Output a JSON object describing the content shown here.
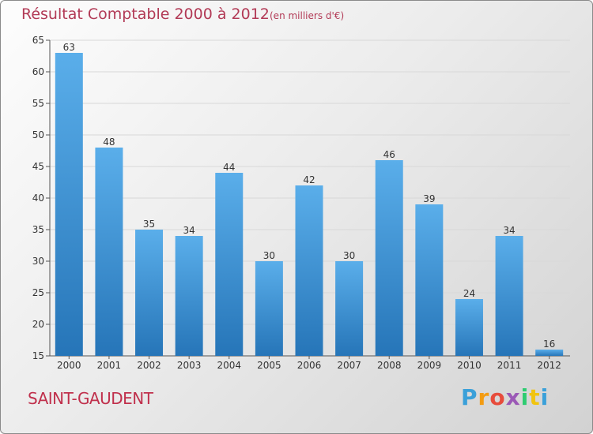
{
  "chart_data": {
    "type": "bar",
    "title": "Résultat Comptable 2000 à 2012",
    "subtitle": "(en milliers d'€)",
    "categories": [
      "2000",
      "2001",
      "2002",
      "2003",
      "2004",
      "2005",
      "2006",
      "2007",
      "2008",
      "2009",
      "2010",
      "2011",
      "2012"
    ],
    "values": [
      63,
      48,
      35,
      34,
      44,
      30,
      42,
      30,
      46,
      39,
      24,
      34,
      16
    ],
    "ylim": [
      15,
      65
    ],
    "yticks": [
      15,
      20,
      25,
      30,
      35,
      40,
      45,
      50,
      55,
      60,
      65
    ],
    "grid": true,
    "bar_color": "#3d8fd1"
  },
  "location": "SAINT-GAUDENT",
  "logo": {
    "text": "Proxiti",
    "letters": [
      "P",
      "r",
      "o",
      "x",
      "i",
      "t",
      "i"
    ],
    "colors": [
      "#3aa0d9",
      "#f39c12",
      "#e74c3c",
      "#9b59b6",
      "#2ecc71",
      "#f1c40f",
      "#3aa0d9"
    ]
  }
}
